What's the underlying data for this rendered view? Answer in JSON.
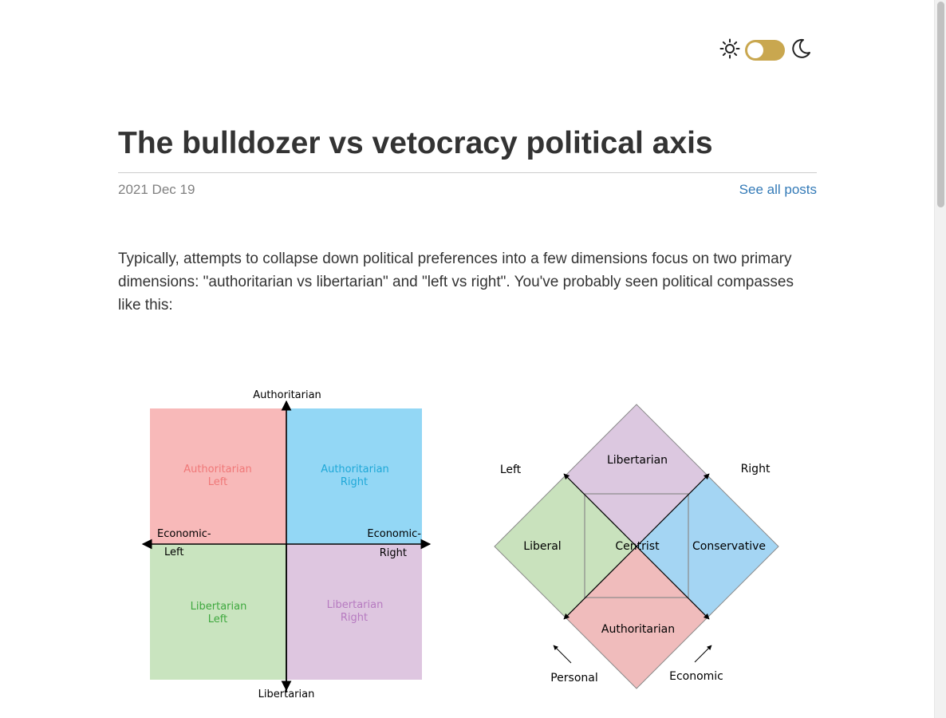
{
  "theme_toggle": {
    "sun_icon": "sun-icon",
    "moon_icon": "moon-icon",
    "track_color": "#c9a74f",
    "state": "light"
  },
  "post": {
    "title": "The bulldozer vs vetocracy political axis",
    "date": "2021 Dec 19",
    "see_all_label": "See all posts",
    "intro": "Typically, attempts to collapse down political preferences into a few dimensions focus on two primary dimensions: \"authoritarian vs libertarian\" and \"left vs right\". You've probably seen political compasses like this:"
  },
  "compass": {
    "top_label": "Authoritarian",
    "bottom_label": "Libertarian",
    "left_label_1": "Economic-",
    "left_label_2": "Left",
    "right_label_1": "Economic-",
    "right_label_2": "Right",
    "quadrants": {
      "tl_1": "Authoritarian",
      "tl_2": "Left",
      "tr_1": "Authoritarian",
      "tr_2": "Right",
      "bl_1": "Libertarian",
      "bl_2": "Left",
      "br_1": "Libertarian",
      "br_2": "Right"
    },
    "colors": {
      "tl_fill": "#f8b9b9",
      "tl_text": "#f07878",
      "tr_fill": "#93d7f5",
      "tr_text": "#1fa8d8",
      "bl_fill": "#c9e4bf",
      "bl_text": "#3ea83e",
      "br_fill": "#dec6e0",
      "br_text": "#b67ac0"
    }
  },
  "nolan": {
    "top": "Libertarian",
    "left": "Liberal",
    "center": "Centrist",
    "right": "Conservative",
    "bottom": "Authoritarian",
    "corner_left": "Left",
    "corner_right": "Right",
    "axis_personal": "Personal",
    "axis_economic": "Economic",
    "colors": {
      "top_fill": "#dcc8e0",
      "left_fill": "#c9e2bd",
      "right_fill": "#a4d5f3",
      "bottom_fill": "#f0bcbc"
    }
  }
}
